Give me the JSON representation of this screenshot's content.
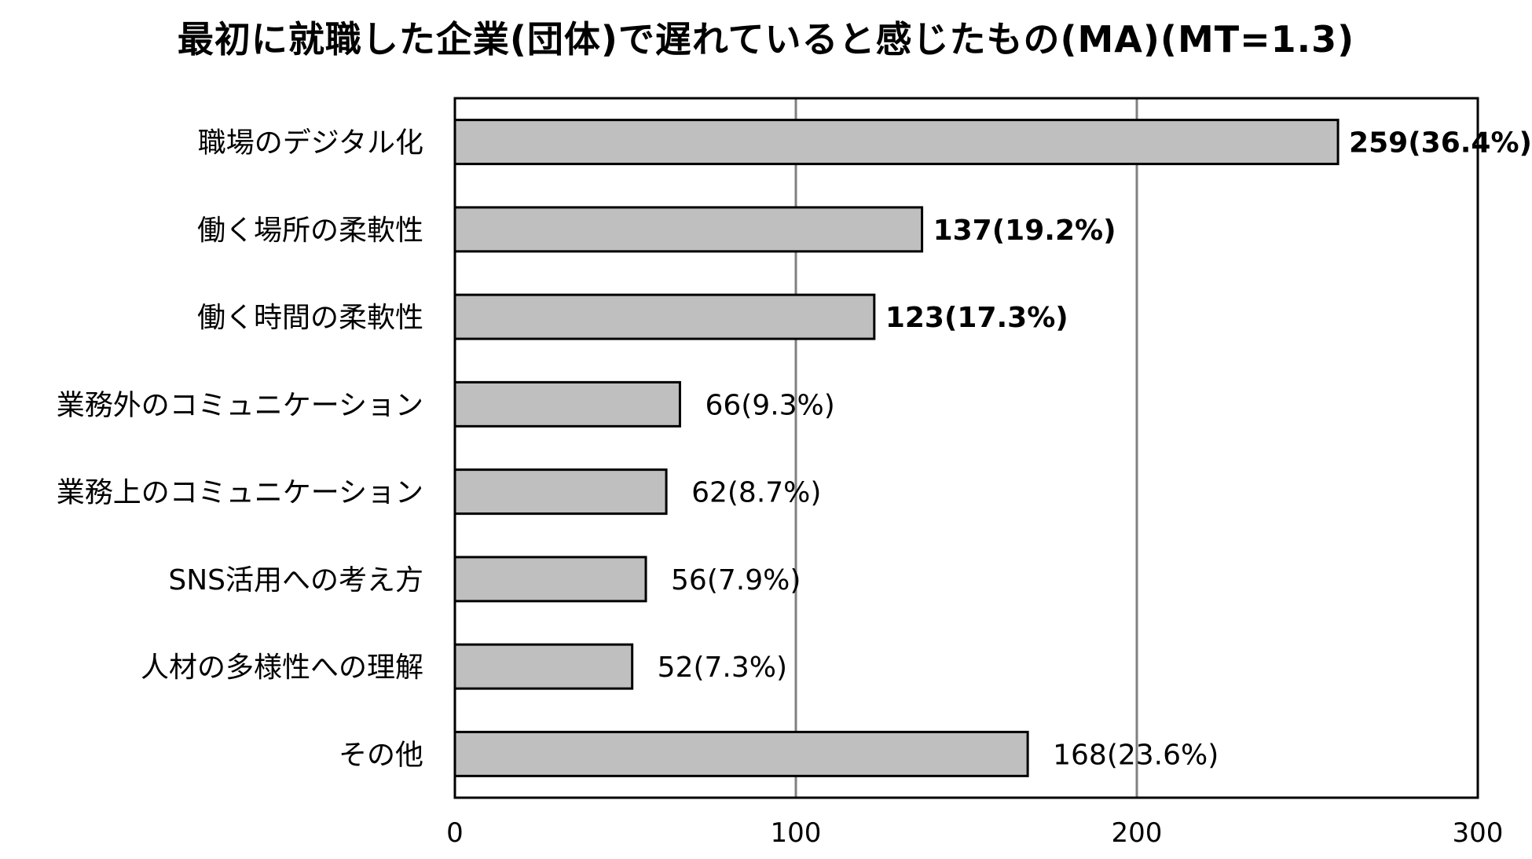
{
  "chart_data": {
    "type": "bar",
    "orientation": "horizontal",
    "title": "最初に就職した企業(団体)で遅れていると感じたもの(MA)(MT=1.3)",
    "xlabel": "",
    "ylabel": "",
    "xlim": [
      0,
      300
    ],
    "x_ticks": [
      "0",
      "100",
      "200",
      "300"
    ],
    "grid": true,
    "legend": "none",
    "colors": {
      "bar_fill": "#bfbfbf",
      "bar_stroke": "#000000",
      "gridline": "#808080",
      "frame": "#000000"
    },
    "categories": [
      "職場のデジタル化",
      "働く場所の柔軟性",
      "働く時間の柔軟性",
      "業務外のコミュニケーション",
      "業務上のコミュニケーション",
      "SNS活用への考え方",
      "人材の多様性への理解",
      "その他"
    ],
    "values": [
      259,
      137,
      123,
      66,
      62,
      56,
      52,
      168
    ],
    "data_labels": [
      "259(36.4%)",
      "137(19.2%)",
      "123(17.3%)",
      "66(9.3%)",
      "62(8.7%)",
      "56(7.9%)",
      "52(7.3%)",
      "168(23.6%)"
    ],
    "bold_labels": [
      true,
      true,
      true,
      false,
      false,
      false,
      false,
      false
    ]
  }
}
